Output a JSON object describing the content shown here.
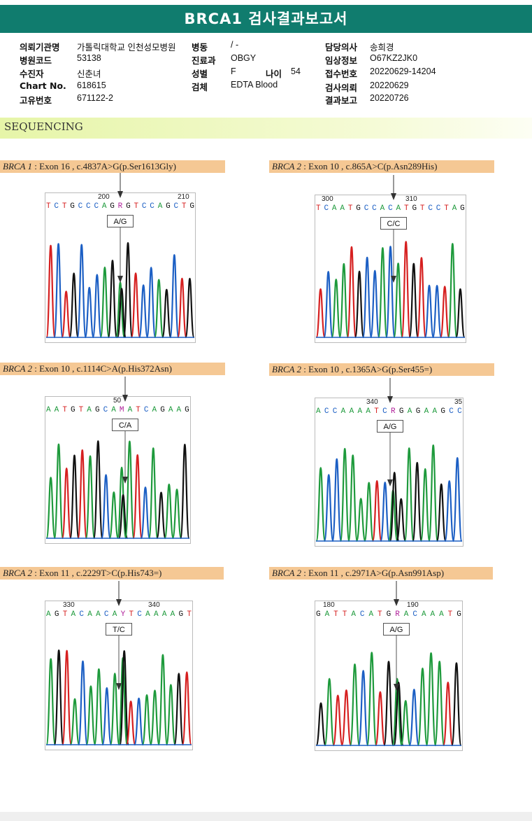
{
  "header": {
    "title": "BRCA1 검사결과보고서"
  },
  "patient_info": {
    "col1": [
      {
        "label": "의뢰기관명",
        "value": "가톨릭대학교 인천성모병원"
      },
      {
        "label": "병원코드",
        "value": "53138"
      },
      {
        "label": "수진자",
        "value": "신춘녀"
      },
      {
        "label": "Chart No.",
        "value": "618615"
      },
      {
        "label": "고유번호",
        "value": "671122-2"
      }
    ],
    "col2": [
      {
        "label": "병동",
        "value": "/ -"
      },
      {
        "label": "진료과",
        "value": "OBGY"
      },
      {
        "label": "성별",
        "value": "F"
      },
      {
        "label": "검체",
        "value": "EDTA Blood"
      }
    ],
    "age": {
      "label": "나이",
      "value": "54"
    },
    "col3": [
      {
        "label": "담당의사",
        "value": "송희경"
      },
      {
        "label": "임상정보",
        "value": "O67KZ2JK0"
      },
      {
        "label": "접수번호",
        "value": "20220629-14204"
      },
      {
        "label": "검사의뢰",
        "value": "20220629"
      },
      {
        "label": "결과보고",
        "value": "20220726"
      }
    ]
  },
  "section": {
    "title": "SEQUENCING"
  },
  "panels": [
    {
      "gene": "BRCA 1",
      "variant": " : Exon 16 , c.4837A>G(p.Ser1613Gly)",
      "pos_left": "200",
      "pos_right": "210",
      "sequence": "TCTGCCCAGRGTCCAGCTG",
      "genotype": "A/G"
    },
    {
      "gene": "BRCA 2",
      "variant": " : Exon 10 , c.865A>C(p.Asn289His)",
      "pos_left": "300",
      "pos_right": "310",
      "sequence": "TCAATGCCACATGTCCTAG",
      "genotype": "C/C"
    },
    {
      "gene": "BRCA 2",
      "variant": " : Exon 10 , c.1114C>A(p.His372Asn)",
      "pos_left": "50",
      "pos_right": "",
      "sequence": "AATGTAGCAMATCAGAAG",
      "genotype": "C/A"
    },
    {
      "gene": "BRCA 2",
      "variant": " : Exon 10 , c.1365A>G(p.Ser455=)",
      "pos_left": "340",
      "pos_right": "35",
      "sequence": "ACCAAAATCRGAGAAGCC",
      "genotype": "A/G"
    },
    {
      "gene": "BRCA 2",
      "variant": " : Exon 11 , c.2229T>C(p.His743=)",
      "pos_left": "330",
      "pos_right": "340",
      "sequence": "AGTACAACAYTCAAAAGT",
      "genotype": "T/C"
    },
    {
      "gene": "BRCA 2",
      "variant": " : Exon 11 , c.2971A>G(p.Asn991Asp)",
      "pos_left": "180",
      "pos_right": "190",
      "sequence": "GATTACATGRACAAATG",
      "genotype": "A/G"
    }
  ],
  "colors": {
    "title_bar": "#107c6e",
    "label_bg": "#f5c894",
    "A": "#1e9a3c",
    "C": "#1c5fc4",
    "G": "#111111",
    "T": "#d62020",
    "het": "#b0209a"
  }
}
